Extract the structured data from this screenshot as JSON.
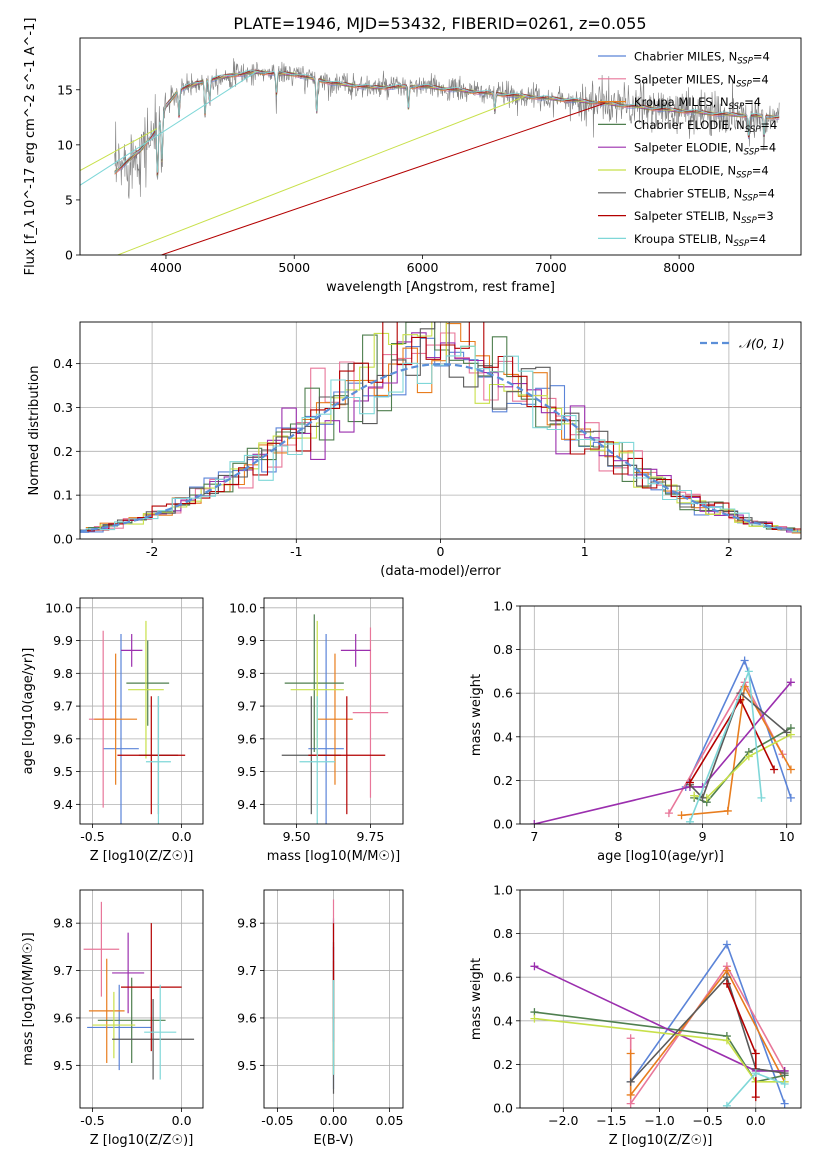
{
  "figure": {
    "title": "PLATE=1946, MJD=53432, FIBERID=0261, z=0.055"
  },
  "colors": {
    "models": [
      "#5b84d8",
      "#e8779a",
      "#e87d1e",
      "#4f7f4f",
      "#9b2fae",
      "#c8e04a",
      "#5a5a5a",
      "#b30000",
      "#7fd7d8"
    ],
    "data": "#808080",
    "normal": "#5b8fd8",
    "grid": "#b0b0b0"
  },
  "chart_data": [
    {
      "id": "spectrum",
      "type": "line",
      "xlabel": "wavelength [Angstrom, rest frame]",
      "ylabel": "Flux [f_λ 10^-17 erg cm^-2 s^-1 A^-1]",
      "xlim": [
        3330,
        8950
      ],
      "ylim": [
        0,
        19.7
      ],
      "xticks": [
        4000,
        5000,
        6000,
        7000,
        8000
      ],
      "yticks": [
        0,
        5,
        10,
        15
      ],
      "grid": false,
      "legend_position": "top-right",
      "legend": [
        {
          "name": "Chabrier MILES",
          "nssp": "4"
        },
        {
          "name": "Salpeter MILES",
          "nssp": "4"
        },
        {
          "name": "Kroupa MILES",
          "nssp": "4"
        },
        {
          "name": "Chabrier ELODIE",
          "nssp": "4"
        },
        {
          "name": "Salpeter ELODIE",
          "nssp": "4"
        },
        {
          "name": "Kroupa ELODIE",
          "nssp": "4"
        },
        {
          "name": "Chabrier STELIB",
          "nssp": "4"
        },
        {
          "name": "Salpeter STELIB",
          "nssp": "3"
        },
        {
          "name": "Kroupa STELIB",
          "nssp": "4"
        }
      ],
      "continuum_knots": [
        [
          3600,
          7.5
        ],
        [
          3700,
          8.5
        ],
        [
          3800,
          9.5
        ],
        [
          3900,
          11
        ],
        [
          3950,
          11.8
        ],
        [
          4000,
          13.5
        ],
        [
          4100,
          15
        ],
        [
          4300,
          15.8
        ],
        [
          4500,
          16.3
        ],
        [
          4700,
          16.6
        ],
        [
          5000,
          16.4
        ],
        [
          5300,
          15.6
        ],
        [
          5600,
          15.2
        ],
        [
          6000,
          15.3
        ],
        [
          6500,
          14.7
        ],
        [
          7000,
          14.2
        ],
        [
          7400,
          13.8
        ],
        [
          7800,
          13.3
        ],
        [
          8300,
          12.8
        ],
        [
          8800,
          12.5
        ]
      ],
      "absorption_dips": [
        [
          3934,
          4.5
        ],
        [
          3969,
          4.0
        ],
        [
          4102,
          2.5
        ],
        [
          4305,
          3.0
        ],
        [
          4340,
          2.0
        ],
        [
          4861,
          2.0
        ],
        [
          5175,
          3.0
        ],
        [
          5890,
          2.0
        ],
        [
          6563,
          1.5
        ],
        [
          8542,
          2.0
        ],
        [
          8662,
          1.8
        ]
      ],
      "drop_lines": [
        [
          3930,
          3.9
        ],
        [
          4700,
          4.72
        ],
        [
          6800,
          6.82
        ],
        [
          7420,
          7.44
        ]
      ]
    },
    {
      "id": "residuals",
      "type": "histogram",
      "xlabel": "(data-model)/error",
      "ylabel": "Normed distribution",
      "xlim": [
        -2.5,
        2.5
      ],
      "ylim": [
        0,
        0.495
      ],
      "xticks": [
        -2,
        -1,
        0,
        1,
        2
      ],
      "yticks": [
        0.0,
        0.1,
        0.2,
        0.3,
        0.4
      ],
      "grid": true,
      "bin_width": 0.1,
      "legend_position": "top-right",
      "legend": [
        "𝒩(0, 1)"
      ],
      "normal": {
        "mu": 0,
        "sigma": 1
      }
    },
    {
      "id": "age-vs-Z",
      "type": "scatter",
      "xlabel": "Z [log10(Z/Z☉)]",
      "ylabel": "age [log10(age/yr)]",
      "xlim": [
        -0.57,
        0.12
      ],
      "ylim": [
        9.34,
        10.03
      ],
      "xticks": [
        -0.5,
        0.0
      ],
      "yticks": [
        9.4,
        9.5,
        9.6,
        9.7,
        9.8,
        9.9,
        10.0
      ],
      "grid": true,
      "points": [
        {
          "x": -0.34,
          "y": 9.57,
          "xerr": 0.1,
          "yerr": 0.35
        },
        {
          "x": -0.44,
          "y": 9.66,
          "xerr": 0.08,
          "yerr": 0.27
        },
        {
          "x": -0.37,
          "y": 9.66,
          "xerr": 0.12,
          "yerr": 0.2
        },
        {
          "x": -0.19,
          "y": 9.77,
          "xerr": 0.12,
          "yerr": 0.13
        },
        {
          "x": -0.28,
          "y": 9.87,
          "xerr": 0.06,
          "yerr": 0.05
        },
        {
          "x": -0.2,
          "y": 9.75,
          "xerr": 0.1,
          "yerr": 0.21
        },
        {
          "x": -0.13,
          "y": 9.55,
          "xerr": 0.11,
          "yerr": 0.18
        },
        {
          "x": -0.17,
          "y": 9.55,
          "xerr": 0.19,
          "yerr": 0.18
        },
        {
          "x": -0.13,
          "y": 9.53,
          "xerr": 0.07,
          "yerr": 0.2
        }
      ]
    },
    {
      "id": "age-vs-mass",
      "type": "scatter",
      "xlabel": "mass [log10(M/M☉)]",
      "ylabel": "",
      "xlim": [
        9.39,
        9.86
      ],
      "ylim": [
        9.34,
        10.03
      ],
      "xticks": [
        9.5,
        9.75
      ],
      "yticks": [
        9.4,
        9.5,
        9.6,
        9.7,
        9.8,
        9.9,
        10.0
      ],
      "grid": true,
      "points": [
        {
          "x": 9.6,
          "y": 9.57,
          "xerr": 0.06,
          "yerr": 0.35
        },
        {
          "x": 9.75,
          "y": 9.68,
          "xerr": 0.06,
          "yerr": 0.26
        },
        {
          "x": 9.63,
          "y": 9.66,
          "xerr": 0.06,
          "yerr": 0.2
        },
        {
          "x": 9.56,
          "y": 9.77,
          "xerr": 0.1,
          "yerr": 0.21
        },
        {
          "x": 9.7,
          "y": 9.87,
          "xerr": 0.05,
          "yerr": 0.05
        },
        {
          "x": 9.57,
          "y": 9.75,
          "xerr": 0.09,
          "yerr": 0.21
        },
        {
          "x": 9.55,
          "y": 9.55,
          "xerr": 0.1,
          "yerr": 0.18
        },
        {
          "x": 9.67,
          "y": 9.55,
          "xerr": 0.13,
          "yerr": 0.18
        },
        {
          "x": 9.57,
          "y": 9.53,
          "xerr": 0.06,
          "yerr": 0.2
        }
      ]
    },
    {
      "id": "weight-vs-age",
      "type": "line",
      "xlabel": "age [log10(age/yr)]",
      "ylabel": "mass weight",
      "xlim": [
        6.83,
        10.17
      ],
      "ylim": [
        0,
        1.0
      ],
      "xticks": [
        7,
        8,
        9,
        10
      ],
      "yticks": [
        0.0,
        0.2,
        0.4,
        0.6,
        0.8,
        1.0
      ],
      "grid": true,
      "series": [
        {
          "x": [
            8.8,
            9.5,
            10.05
          ],
          "y": [
            0.17,
            0.75,
            0.12
          ]
        },
        {
          "x": [
            8.6,
            9.5,
            9.95
          ],
          "y": [
            0.05,
            0.65,
            0.32
          ]
        },
        {
          "x": [
            8.75,
            9.3,
            9.5,
            10.05
          ],
          "y": [
            0.04,
            0.06,
            0.63,
            0.25
          ]
        },
        {
          "x": [
            8.9,
            9.05,
            9.55,
            10.05
          ],
          "y": [
            0.12,
            0.1,
            0.33,
            0.44
          ]
        },
        {
          "x": [
            7.0,
            8.85,
            9.0,
            10.05
          ],
          "y": [
            0.0,
            0.17,
            0.17,
            0.65
          ]
        },
        {
          "x": [
            8.9,
            9.05,
            9.55,
            10.05
          ],
          "y": [
            0.13,
            0.12,
            0.31,
            0.41
          ]
        },
        {
          "x": [
            8.85,
            9.0,
            9.45,
            10.0
          ],
          "y": [
            0.18,
            0.12,
            0.6,
            0.42
          ]
        },
        {
          "x": [
            8.85,
            9.45,
            9.85
          ],
          "y": [
            0.19,
            0.57,
            0.25
          ]
        },
        {
          "x": [
            8.85,
            9.55,
            9.7
          ],
          "y": [
            0.01,
            0.7,
            0.12
          ]
        }
      ]
    },
    {
      "id": "mass-vs-Z",
      "type": "scatter",
      "xlabel": "Z [log10(Z/Z☉)]",
      "ylabel": "mass [log10(M/M☉)]",
      "xlim": [
        -0.57,
        0.12
      ],
      "ylim": [
        9.41,
        9.87
      ],
      "xticks": [
        -0.5,
        0.0
      ],
      "yticks": [
        9.5,
        9.6,
        9.7,
        9.8
      ],
      "grid": true,
      "points": [
        {
          "x": -0.35,
          "y": 9.58,
          "xerr": 0.18,
          "yerr": 0.09
        },
        {
          "x": -0.45,
          "y": 9.745,
          "xerr": 0.1,
          "yerr": 0.1
        },
        {
          "x": -0.42,
          "y": 9.615,
          "xerr": 0.1,
          "yerr": 0.11
        },
        {
          "x": -0.28,
          "y": 9.595,
          "xerr": 0.19,
          "yerr": 0.09
        },
        {
          "x": -0.3,
          "y": 9.695,
          "xerr": 0.09,
          "yerr": 0.085
        },
        {
          "x": -0.38,
          "y": 9.585,
          "xerr": 0.12,
          "yerr": 0.07
        },
        {
          "x": -0.16,
          "y": 9.555,
          "xerr": 0.23,
          "yerr": 0.085
        },
        {
          "x": -0.17,
          "y": 9.665,
          "xerr": 0.17,
          "yerr": 0.135
        },
        {
          "x": -0.12,
          "y": 9.57,
          "xerr": 0.09,
          "yerr": 0.1
        }
      ]
    },
    {
      "id": "ebv",
      "type": "scatter",
      "xlabel": "E(B-V)",
      "ylabel": "",
      "xlim": [
        -0.062,
        0.062
      ],
      "ylim": [
        9.41,
        9.87
      ],
      "xticks": [
        -0.05,
        0.0,
        0.05
      ],
      "yticks": [
        9.5,
        9.6,
        9.7,
        9.8
      ],
      "grid": true,
      "points": [
        {
          "x": 0.0,
          "y": 9.63,
          "xerr": 0,
          "yerr": 0.18
        },
        {
          "x": 0.0,
          "y": 9.72,
          "xerr": 0,
          "yerr": 0.13
        },
        {
          "x": 0.0,
          "y": 9.6,
          "xerr": 0,
          "yerr": 0.12
        },
        {
          "x": 0.0,
          "y": 9.6,
          "xerr": 0,
          "yerr": 0.1
        },
        {
          "x": 0.0,
          "y": 9.65,
          "xerr": 0,
          "yerr": 0.1
        },
        {
          "x": 0.0,
          "y": 9.58,
          "xerr": 0,
          "yerr": 0.1
        },
        {
          "x": 0.0,
          "y": 9.6,
          "xerr": 0,
          "yerr": 0.16
        },
        {
          "x": 0.0,
          "y": 9.74,
          "xerr": 0,
          "yerr": 0.06
        },
        {
          "x": 0.0,
          "y": 9.58,
          "xerr": 0,
          "yerr": 0.1
        }
      ]
    },
    {
      "id": "weight-vs-Z",
      "type": "line",
      "xlabel": "Z [log10(Z/Z☉)]",
      "ylabel": "mass weight",
      "xlim": [
        -2.45,
        0.47
      ],
      "ylim": [
        0,
        1.0
      ],
      "xticks": [
        -2.0,
        -1.5,
        -1.0,
        -0.5,
        0.0
      ],
      "yticks": [
        0.0,
        0.2,
        0.4,
        0.6,
        0.8,
        1.0
      ],
      "grid": true,
      "series": [
        {
          "x": [
            -1.3,
            -0.3,
            0.3
          ],
          "y": [
            0.12,
            0.75,
            0.02
          ]
        },
        {
          "x": [
            -1.3,
            -1.3,
            -0.3,
            0.3
          ],
          "y": [
            0.32,
            0.02,
            0.65,
            0.17
          ]
        },
        {
          "x": [
            -1.3,
            -1.3,
            -0.3,
            0.3
          ],
          "y": [
            0.25,
            0.06,
            0.63,
            0.12
          ]
        },
        {
          "x": [
            -2.3,
            -0.3,
            0.0,
            0.3
          ],
          "y": [
            0.44,
            0.33,
            0.12,
            0.15
          ]
        },
        {
          "x": [
            -2.3,
            0.0,
            0.3
          ],
          "y": [
            0.65,
            0.17,
            0.17
          ]
        },
        {
          "x": [
            -2.3,
            -0.3,
            0.0,
            0.3
          ],
          "y": [
            0.41,
            0.31,
            0.12,
            0.12
          ]
        },
        {
          "x": [
            -1.3,
            -0.3,
            0.0,
            0.3
          ],
          "y": [
            0.12,
            0.6,
            0.18,
            0.16
          ]
        },
        {
          "x": [
            -0.3,
            0.0,
            0.0
          ],
          "y": [
            0.57,
            0.25,
            0.05
          ]
        },
        {
          "x": [
            -0.3,
            0.0,
            0.3
          ],
          "y": [
            0.01,
            0.16,
            0.11
          ]
        }
      ]
    }
  ]
}
